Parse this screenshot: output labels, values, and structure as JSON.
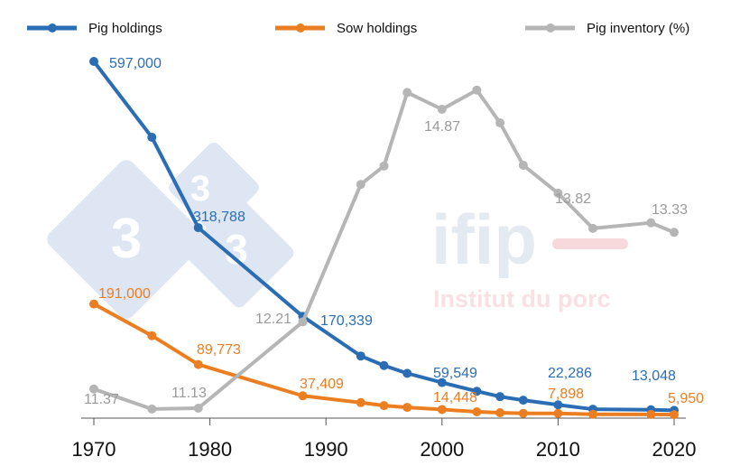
{
  "chart_data": {
    "type": "line",
    "title": "",
    "xlabel": "",
    "ylabel": "",
    "x": [
      1970,
      1975,
      1979,
      1988,
      1993,
      1995,
      1997,
      2000,
      2003,
      2005,
      2007,
      2010,
      2013,
      2018,
      2020
    ],
    "xticks": [
      "1970",
      "1980",
      "1990",
      "2000",
      "2010",
      "2020"
    ],
    "xlim": [
      1970,
      2020
    ],
    "grid": false,
    "legend_position": "top",
    "series": [
      {
        "name": "Pig holdings",
        "axis": "left",
        "color": "#2a6db5",
        "values": [
          597000,
          470000,
          318788,
          170339,
          104000,
          88000,
          75000,
          59549,
          45000,
          36000,
          30000,
          22286,
          15000,
          14000,
          13048
        ],
        "labels": [
          "597,000",
          null,
          "318,788",
          "170,339",
          null,
          null,
          null,
          "59,549",
          null,
          null,
          null,
          "22,286",
          null,
          null,
          "13,048"
        ]
      },
      {
        "name": "Sow holdings",
        "axis": "left",
        "color": "#ec7e22",
        "values": [
          191000,
          138000,
          89773,
          37409,
          26000,
          21000,
          18000,
          14448,
          10600,
          9000,
          8000,
          7898,
          6500,
          6200,
          5950
        ],
        "labels": [
          "191,000",
          null,
          "89,773",
          "37,409",
          null,
          null,
          null,
          "14,448",
          null,
          null,
          null,
          "7,898",
          null,
          null,
          "5,950"
        ]
      },
      {
        "name": "Pig inventory (%)",
        "axis": "right",
        "color": "#b5b5b5",
        "values": [
          11.37,
          11.12,
          11.13,
          12.21,
          13.93,
          14.16,
          15.08,
          14.87,
          15.11,
          14.7,
          14.17,
          13.82,
          13.38,
          13.45,
          13.33
        ],
        "labels": [
          "11.37",
          null,
          "11.13",
          "12.21",
          null,
          null,
          null,
          "14.87",
          null,
          null,
          null,
          "13.82",
          null,
          null,
          "13.33"
        ]
      }
    ]
  },
  "watermark": {
    "logo_digit": "3",
    "brand": "ifip",
    "brand_subtitle": "Institut du porc"
  }
}
